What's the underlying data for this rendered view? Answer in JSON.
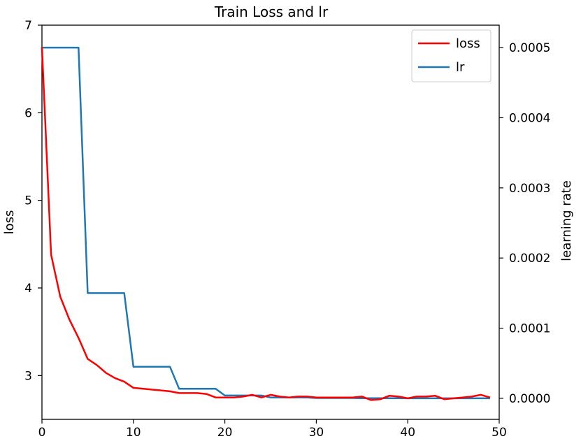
{
  "chart_data": {
    "type": "line",
    "title": "Train Loss and lr",
    "xlabel": "",
    "ylabel": "loss",
    "y2label": "learning rate",
    "xlim": [
      0,
      50
    ],
    "ylim": [
      2.5,
      7.0
    ],
    "y2lim": [
      -3e-05,
      0.000532
    ],
    "xticks": [
      "0",
      "10",
      "20",
      "30",
      "40",
      "50"
    ],
    "yticks": [
      "3",
      "4",
      "5",
      "6",
      "7"
    ],
    "y2ticks": [
      "0.0000",
      "0.0001",
      "0.0002",
      "0.0003",
      "0.0004",
      "0.0005"
    ],
    "grid": false,
    "legend_position": "top-right",
    "series": [
      {
        "name": "loss",
        "axis": "left",
        "color": "#ff0000",
        "x": [
          0,
          1,
          2,
          3,
          4,
          5,
          6,
          7,
          8,
          9,
          10,
          11,
          12,
          13,
          14,
          15,
          16,
          17,
          18,
          19,
          20,
          21,
          22,
          23,
          24,
          25,
          26,
          27,
          28,
          29,
          30,
          31,
          32,
          33,
          34,
          35,
          36,
          37,
          38,
          39,
          40,
          41,
          42,
          43,
          44,
          45,
          46,
          47,
          48,
          49
        ],
        "values": [
          6.75,
          4.38,
          3.9,
          3.64,
          3.43,
          3.19,
          3.12,
          3.03,
          2.97,
          2.93,
          2.86,
          2.85,
          2.84,
          2.83,
          2.82,
          2.8,
          2.8,
          2.8,
          2.79,
          2.75,
          2.75,
          2.75,
          2.76,
          2.78,
          2.75,
          2.78,
          2.76,
          2.75,
          2.76,
          2.76,
          2.75,
          2.75,
          2.75,
          2.75,
          2.75,
          2.76,
          2.72,
          2.73,
          2.77,
          2.76,
          2.74,
          2.76,
          2.76,
          2.77,
          2.73,
          2.74,
          2.75,
          2.76,
          2.78,
          2.75
        ]
      },
      {
        "name": "lr",
        "axis": "right",
        "color": "#1f77b4",
        "x": [
          0,
          1,
          2,
          3,
          4,
          5,
          6,
          7,
          8,
          9,
          10,
          11,
          12,
          13,
          14,
          15,
          16,
          17,
          18,
          19,
          20,
          21,
          22,
          23,
          24,
          25,
          26,
          27,
          28,
          29,
          30,
          31,
          32,
          33,
          34,
          35,
          36,
          37,
          38,
          39,
          40,
          41,
          42,
          43,
          44,
          45,
          46,
          47,
          48,
          49
        ],
        "values": [
          0.0005,
          0.0005,
          0.0005,
          0.0005,
          0.0005,
          0.00015,
          0.00015,
          0.00015,
          0.00015,
          0.00015,
          4.5e-05,
          4.5e-05,
          4.5e-05,
          4.5e-05,
          4.5e-05,
          1.35e-05,
          1.35e-05,
          1.35e-05,
          1.35e-05,
          1.35e-05,
          4e-06,
          4e-06,
          4e-06,
          4e-06,
          4e-06,
          1.2e-06,
          1.2e-06,
          1.2e-06,
          1.2e-06,
          1.2e-06,
          4e-07,
          4e-07,
          4e-07,
          4e-07,
          4e-07,
          1e-07,
          1e-07,
          1e-07,
          1e-07,
          1e-07,
          3e-08,
          3e-08,
          3e-08,
          3e-08,
          3e-08,
          1e-08,
          1e-08,
          1e-08,
          1e-08,
          1e-08
        ]
      }
    ]
  }
}
